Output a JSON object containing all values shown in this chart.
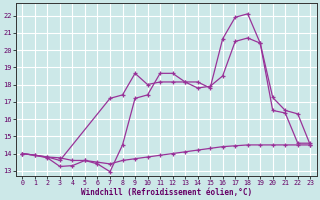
{
  "background_color": "#cce8e8",
  "grid_color": "#ffffff",
  "line_color": "#993399",
  "xlabel": "Windchill (Refroidissement éolien,°C)",
  "xlim": [
    -0.5,
    23.5
  ],
  "ylim": [
    12.7,
    22.7
  ],
  "yticks": [
    13,
    14,
    15,
    16,
    17,
    18,
    19,
    20,
    21,
    22
  ],
  "xticks": [
    0,
    1,
    2,
    3,
    4,
    5,
    6,
    7,
    8,
    9,
    10,
    11,
    12,
    13,
    14,
    15,
    16,
    17,
    18,
    19,
    20,
    21,
    22,
    23
  ],
  "series1": {
    "x": [
      0,
      1,
      2,
      3,
      4,
      5,
      6,
      7,
      8,
      9,
      10,
      11,
      12,
      13,
      14,
      15,
      16,
      17,
      18,
      19,
      20,
      21,
      22,
      23
    ],
    "y": [
      14.0,
      13.9,
      13.8,
      13.75,
      13.6,
      13.6,
      13.5,
      13.4,
      13.6,
      13.7,
      13.8,
      13.9,
      14.0,
      14.1,
      14.2,
      14.3,
      14.4,
      14.45,
      14.5,
      14.5,
      14.5,
      14.5,
      14.5,
      14.5
    ]
  },
  "series2": {
    "x": [
      0,
      1,
      2,
      3,
      4,
      5,
      6,
      7,
      8,
      9,
      10,
      11,
      12,
      13,
      14,
      15,
      16,
      17,
      18,
      19,
      20,
      21,
      22,
      23
    ],
    "y": [
      14.0,
      13.9,
      13.75,
      13.25,
      13.3,
      13.6,
      13.4,
      12.95,
      14.5,
      17.2,
      17.4,
      18.65,
      18.65,
      18.15,
      18.15,
      17.8,
      20.65,
      21.9,
      22.1,
      20.4,
      16.5,
      16.35,
      14.6,
      14.6
    ]
  },
  "series3": {
    "x": [
      0,
      2,
      3,
      7,
      8,
      9,
      10,
      11,
      12,
      13,
      14,
      15,
      16,
      17,
      18,
      19,
      20,
      21,
      22,
      23
    ],
    "y": [
      14.0,
      13.8,
      13.6,
      17.2,
      17.4,
      18.65,
      18.0,
      18.15,
      18.15,
      18.15,
      17.8,
      17.9,
      18.5,
      20.5,
      20.7,
      20.4,
      17.25,
      16.5,
      16.3,
      14.5
    ]
  }
}
